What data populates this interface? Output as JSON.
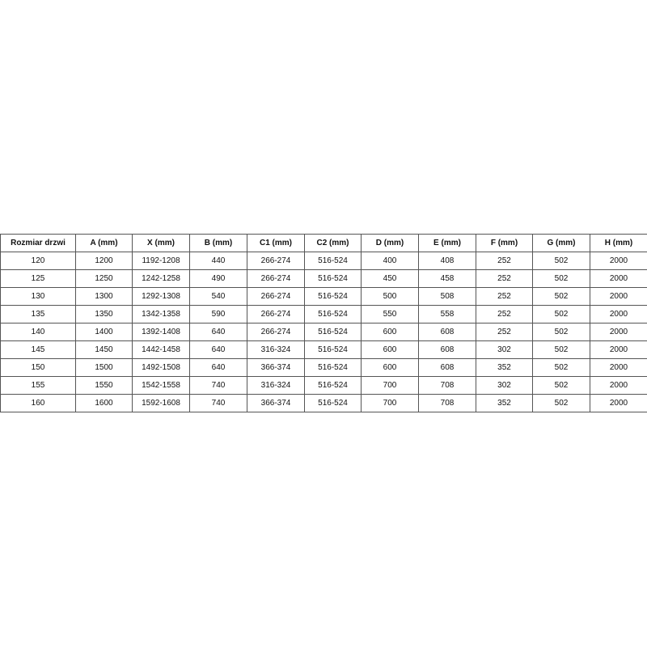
{
  "table": {
    "headers": [
      "Rozmiar drzwi",
      "A (mm)",
      "X (mm)",
      "B (mm)",
      "C1 (mm)",
      "C2 (mm)",
      "D (mm)",
      "E (mm)",
      "F (mm)",
      "G (mm)",
      "H (mm)"
    ],
    "rows": [
      [
        "120",
        "1200",
        "1192-1208",
        "440",
        "266-274",
        "516-524",
        "400",
        "408",
        "252",
        "502",
        "2000"
      ],
      [
        "125",
        "1250",
        "1242-1258",
        "490",
        "266-274",
        "516-524",
        "450",
        "458",
        "252",
        "502",
        "2000"
      ],
      [
        "130",
        "1300",
        "1292-1308",
        "540",
        "266-274",
        "516-524",
        "500",
        "508",
        "252",
        "502",
        "2000"
      ],
      [
        "135",
        "1350",
        "1342-1358",
        "590",
        "266-274",
        "516-524",
        "550",
        "558",
        "252",
        "502",
        "2000"
      ],
      [
        "140",
        "1400",
        "1392-1408",
        "640",
        "266-274",
        "516-524",
        "600",
        "608",
        "252",
        "502",
        "2000"
      ],
      [
        "145",
        "1450",
        "1442-1458",
        "640",
        "316-324",
        "516-524",
        "600",
        "608",
        "302",
        "502",
        "2000"
      ],
      [
        "150",
        "1500",
        "1492-1508",
        "640",
        "366-374",
        "516-524",
        "600",
        "608",
        "352",
        "502",
        "2000"
      ],
      [
        "155",
        "1550",
        "1542-1558",
        "740",
        "316-324",
        "516-524",
        "700",
        "708",
        "302",
        "502",
        "2000"
      ],
      [
        "160",
        "1600",
        "1592-1608",
        "740",
        "366-374",
        "516-524",
        "700",
        "708",
        "352",
        "502",
        "2000"
      ]
    ]
  }
}
